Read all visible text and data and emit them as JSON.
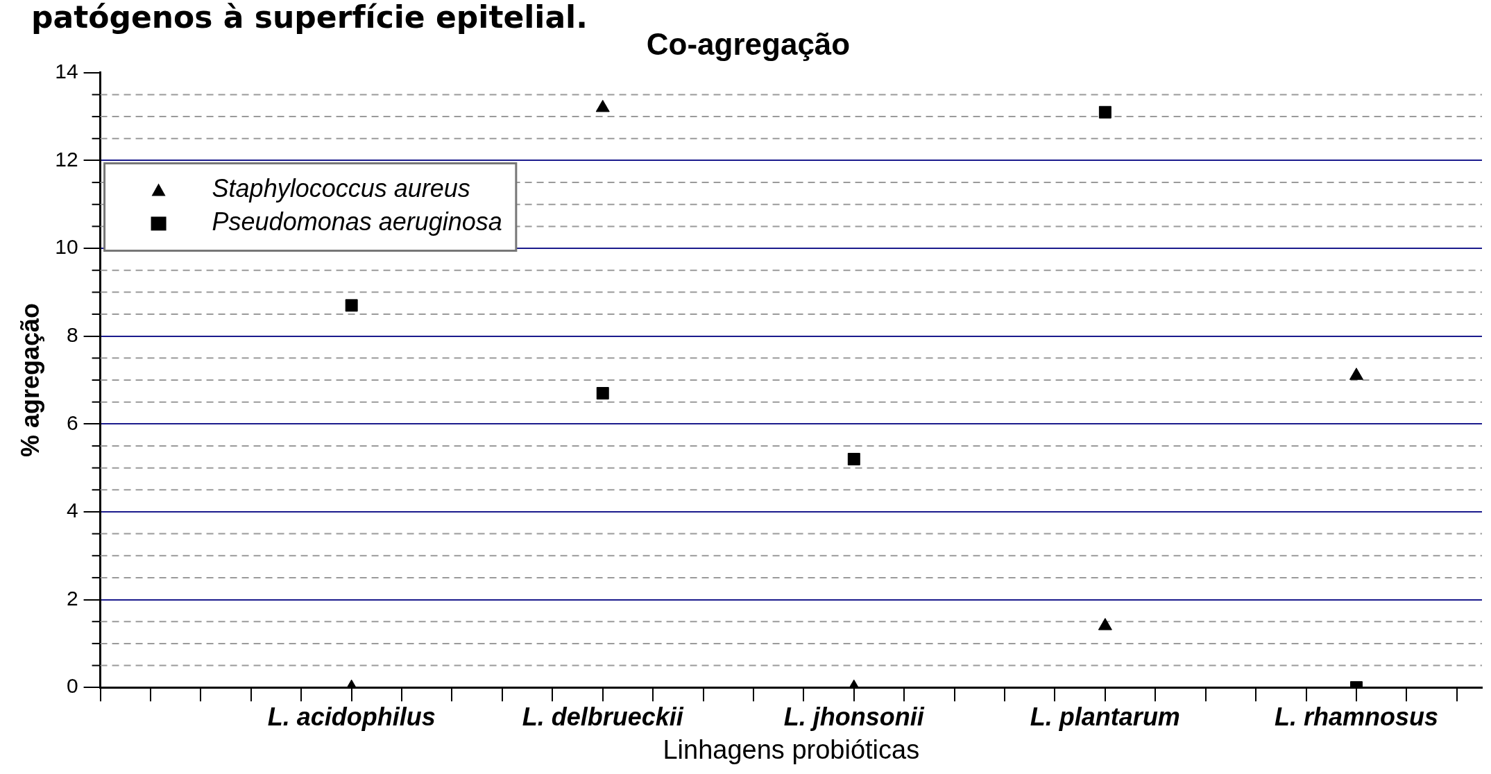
{
  "chart_data": {
    "type": "scatter",
    "title": "Co-agregação",
    "xlabel": "Linhagens probióticas",
    "ylabel": "% agregação",
    "annotations": [
      "patógenos à superfície epitelial."
    ],
    "categories": [
      "L. acidophilus",
      "L. delbrueckii",
      "L. jhonsonii",
      "L. plantarum",
      "L. rhamnosus"
    ],
    "series": [
      {
        "name": "Staphylococcus aureus",
        "color": "#000000",
        "marker": "triangle",
        "values": [
          0,
          13.2,
          0,
          1.4,
          7.1
        ]
      },
      {
        "name": "Pseudomonas aeruginosa",
        "color": "#000000",
        "marker": "square",
        "values": [
          8.7,
          6.7,
          5.2,
          13.1,
          0
        ]
      }
    ],
    "ylim": [
      0,
      14
    ],
    "yticks": [
      0,
      2,
      4,
      6,
      8,
      10,
      12,
      14
    ],
    "grid": true,
    "legend": "top left"
  }
}
